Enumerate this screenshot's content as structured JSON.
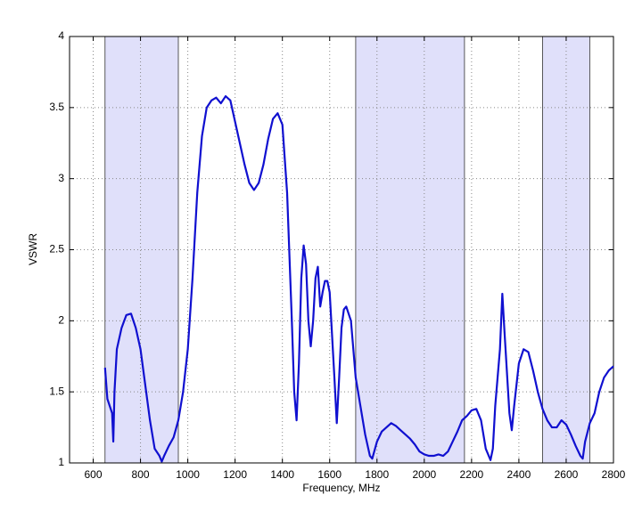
{
  "chart_data": {
    "type": "line",
    "xlabel": "Frequency, MHz",
    "ylabel": "VSWR",
    "xlim": [
      500,
      2800
    ],
    "ylim": [
      1,
      4
    ],
    "xticks": [
      600,
      800,
      1000,
      1200,
      1400,
      1600,
      1800,
      2000,
      2200,
      2400,
      2600,
      2800
    ],
    "yticks": [
      1,
      1.5,
      2,
      2.5,
      3,
      3.5,
      4
    ],
    "grid": true,
    "bands": [
      [
        650,
        960
      ],
      [
        1710,
        2170
      ],
      [
        2500,
        2700
      ]
    ],
    "band_color": "#e0e0fa",
    "series": [
      {
        "color": "#1010d0",
        "x": [
          650,
          660,
          680,
          685,
          690,
          700,
          720,
          740,
          760,
          780,
          800,
          820,
          840,
          860,
          880,
          890,
          900,
          920,
          940,
          960,
          980,
          1000,
          1020,
          1040,
          1060,
          1080,
          1100,
          1120,
          1140,
          1160,
          1180,
          1200,
          1220,
          1240,
          1260,
          1280,
          1300,
          1320,
          1340,
          1360,
          1380,
          1400,
          1420,
          1440,
          1450,
          1460,
          1470,
          1480,
          1490,
          1500,
          1510,
          1520,
          1530,
          1540,
          1550,
          1560,
          1570,
          1580,
          1590,
          1600,
          1620,
          1630,
          1640,
          1650,
          1660,
          1670,
          1690,
          1710,
          1730,
          1750,
          1770,
          1780,
          1800,
          1820,
          1840,
          1860,
          1880,
          1900,
          1920,
          1940,
          1960,
          1980,
          2000,
          2020,
          2040,
          2060,
          2080,
          2100,
          2120,
          2140,
          2160,
          2180,
          2200,
          2220,
          2240,
          2260,
          2280,
          2290,
          2300,
          2320,
          2330,
          2340,
          2360,
          2370,
          2380,
          2400,
          2420,
          2440,
          2460,
          2480,
          2500,
          2520,
          2540,
          2560,
          2580,
          2600,
          2620,
          2640,
          2660,
          2670,
          2680,
          2700,
          2720,
          2740,
          2760,
          2780,
          2800
        ],
        "values": [
          1.67,
          1.45,
          1.35,
          1.15,
          1.5,
          1.8,
          1.95,
          2.04,
          2.05,
          1.95,
          1.8,
          1.55,
          1.3,
          1.1,
          1.05,
          1.01,
          1.05,
          1.12,
          1.18,
          1.3,
          1.5,
          1.8,
          2.3,
          2.9,
          3.3,
          3.5,
          3.55,
          3.57,
          3.53,
          3.58,
          3.55,
          3.4,
          3.25,
          3.1,
          2.97,
          2.92,
          2.97,
          3.1,
          3.28,
          3.42,
          3.46,
          3.38,
          2.9,
          2.0,
          1.5,
          1.3,
          1.7,
          2.3,
          2.53,
          2.4,
          2.0,
          1.82,
          2.0,
          2.3,
          2.38,
          2.1,
          2.2,
          2.28,
          2.28,
          2.2,
          1.6,
          1.28,
          1.6,
          1.95,
          2.08,
          2.1,
          2.0,
          1.6,
          1.4,
          1.2,
          1.05,
          1.03,
          1.15,
          1.22,
          1.25,
          1.28,
          1.26,
          1.23,
          1.2,
          1.17,
          1.13,
          1.08,
          1.06,
          1.05,
          1.05,
          1.06,
          1.05,
          1.08,
          1.15,
          1.22,
          1.3,
          1.33,
          1.37,
          1.38,
          1.3,
          1.1,
          1.02,
          1.1,
          1.4,
          1.8,
          2.19,
          1.9,
          1.35,
          1.23,
          1.4,
          1.7,
          1.8,
          1.78,
          1.65,
          1.5,
          1.38,
          1.3,
          1.25,
          1.25,
          1.3,
          1.27,
          1.2,
          1.12,
          1.05,
          1.03,
          1.15,
          1.28,
          1.35,
          1.5,
          1.6,
          1.65,
          1.68
        ]
      }
    ]
  }
}
